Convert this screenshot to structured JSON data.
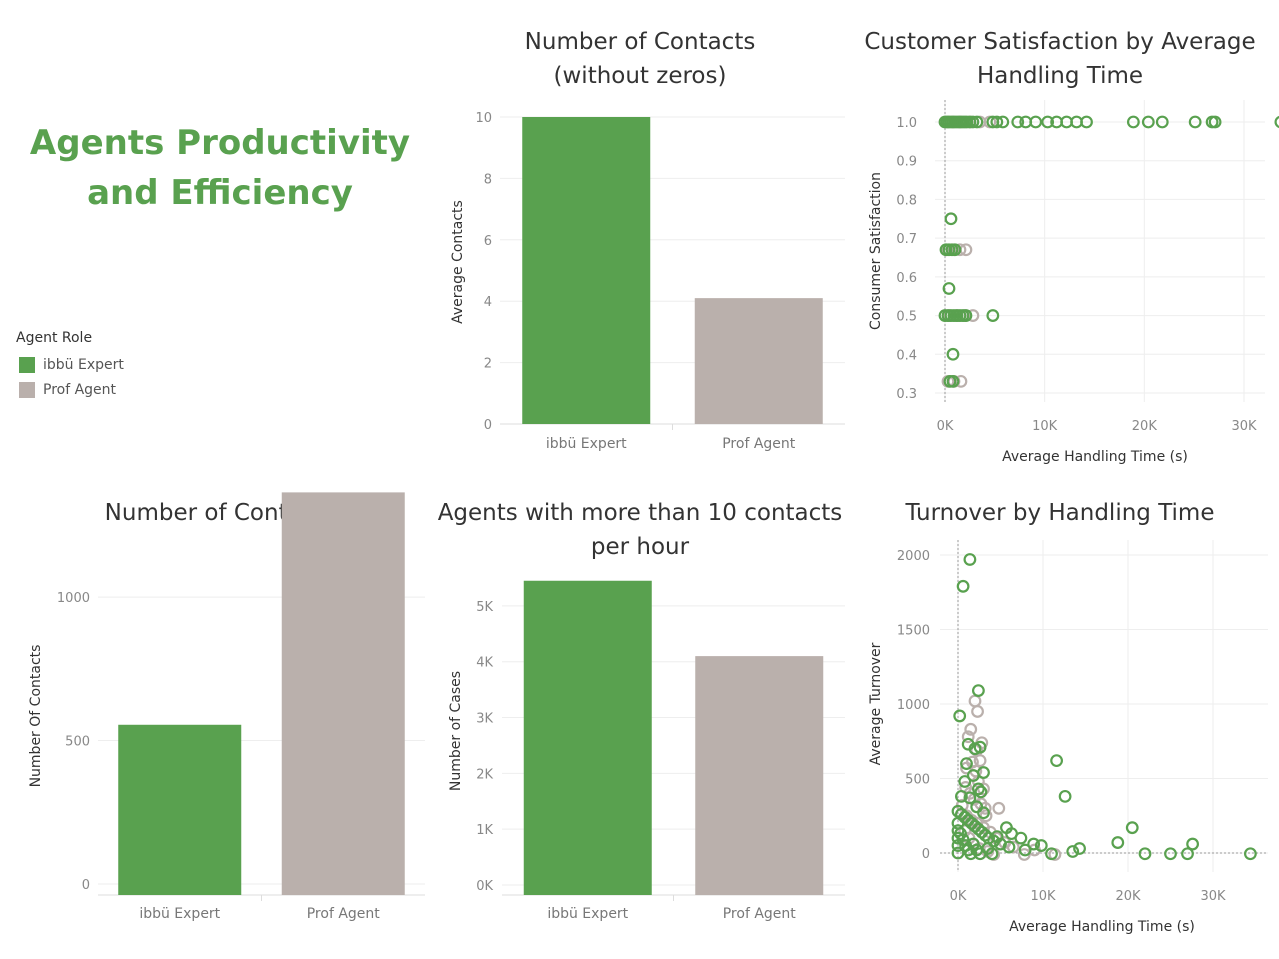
{
  "dashboard": {
    "title_line1": "Agents Productivity",
    "title_line2": "and Efficiency"
  },
  "legend": {
    "title": "Agent Role",
    "items": [
      {
        "label": "ibbü Expert",
        "color": "#59a14f"
      },
      {
        "label": "Prof Agent",
        "color": "#bab0ac"
      }
    ]
  },
  "chart_data": [
    {
      "id": "contacts_without_zeros",
      "type": "bar",
      "title": "Number of Contacts\n(without zeros)",
      "xlabel": "",
      "ylabel": "Average Contacts",
      "categories": [
        "ibbü Expert",
        "Prof Agent"
      ],
      "values": [
        10.0,
        4.1
      ],
      "colors": [
        "#59a14f",
        "#bab0ac"
      ],
      "ylim": [
        0,
        10
      ],
      "yticks": [
        0,
        2,
        4,
        6,
        8,
        10
      ],
      "ytick_labels": [
        "0",
        "2",
        "4",
        "6",
        "8",
        "10"
      ]
    },
    {
      "id": "csat_by_aht",
      "type": "scatter",
      "title": "Customer Satisfaction by Average\nHandling Time",
      "xlabel": "Average Handling Time (s)",
      "ylabel": "Consumer Satisfaction",
      "xlim": [
        0,
        34000
      ],
      "ylim": [
        0.3,
        1.0
      ],
      "xticks": [
        0,
        10000,
        20000,
        30000
      ],
      "xtick_labels": [
        "0K",
        "10K",
        "20K",
        "30K"
      ],
      "yticks": [
        0.3,
        0.4,
        0.5,
        0.6,
        0.7,
        0.8,
        0.9,
        1.0
      ],
      "ytick_labels": [
        "0.3",
        "0.4",
        "0.5",
        "0.6",
        "0.7",
        "0.8",
        "0.9",
        "1.0"
      ],
      "series": [
        {
          "name": "Prof Agent",
          "color": "#bab0ac",
          "points": [
            [
              300,
              1.0
            ],
            [
              800,
              1.0
            ],
            [
              1500,
              1.0
            ],
            [
              2500,
              1.0
            ],
            [
              3500,
              1.0
            ],
            [
              4500,
              1.0
            ],
            [
              200,
              0.67
            ],
            [
              900,
              0.67
            ],
            [
              1500,
              0.67
            ],
            [
              2100,
              0.67
            ],
            [
              400,
              0.5
            ],
            [
              1200,
              0.5
            ],
            [
              2000,
              0.5
            ],
            [
              2800,
              0.5
            ],
            [
              300,
              0.33
            ],
            [
              900,
              0.33
            ],
            [
              1600,
              0.33
            ]
          ]
        },
        {
          "name": "ibbü Expert",
          "color": "#59a14f",
          "points": [
            [
              0,
              1.0
            ],
            [
              200,
              1.0
            ],
            [
              400,
              1.0
            ],
            [
              600,
              1.0
            ],
            [
              800,
              1.0
            ],
            [
              1000,
              1.0
            ],
            [
              1200,
              1.0
            ],
            [
              1400,
              1.0
            ],
            [
              1600,
              1.0
            ],
            [
              1800,
              1.0
            ],
            [
              2000,
              1.0
            ],
            [
              2200,
              1.0
            ],
            [
              2500,
              1.0
            ],
            [
              2800,
              1.0
            ],
            [
              3200,
              1.0
            ],
            [
              4800,
              1.0
            ],
            [
              5200,
              1.0
            ],
            [
              5800,
              1.0
            ],
            [
              7300,
              1.0
            ],
            [
              8100,
              1.0
            ],
            [
              9100,
              1.0
            ],
            [
              10300,
              1.0
            ],
            [
              11200,
              1.0
            ],
            [
              12200,
              1.0
            ],
            [
              13200,
              1.0
            ],
            [
              14200,
              1.0
            ],
            [
              18900,
              1.0
            ],
            [
              20400,
              1.0
            ],
            [
              21800,
              1.0
            ],
            [
              25100,
              1.0
            ],
            [
              26800,
              1.0
            ],
            [
              27100,
              1.0
            ],
            [
              33700,
              1.0
            ],
            [
              600,
              0.75
            ],
            [
              100,
              0.67
            ],
            [
              400,
              0.67
            ],
            [
              700,
              0.67
            ],
            [
              1000,
              0.67
            ],
            [
              400,
              0.57
            ],
            [
              0,
              0.5
            ],
            [
              300,
              0.5
            ],
            [
              600,
              0.5
            ],
            [
              900,
              0.5
            ],
            [
              1200,
              0.5
            ],
            [
              1500,
              0.5
            ],
            [
              1800,
              0.5
            ],
            [
              2100,
              0.5
            ],
            [
              4800,
              0.5
            ],
            [
              800,
              0.4
            ],
            [
              500,
              0.33
            ],
            [
              800,
              0.33
            ]
          ]
        }
      ]
    },
    {
      "id": "number_of_contacts",
      "type": "bar",
      "title": "Number of Contacts",
      "xlabel": "",
      "ylabel": "Number Of Contacts",
      "categories": [
        "ibbü Expert",
        "Prof Agent"
      ],
      "values": [
        555,
        1365
      ],
      "colors": [
        "#59a14f",
        "#bab0ac"
      ],
      "ylim": [
        0,
        1450
      ],
      "yticks": [
        0,
        500,
        1000
      ],
      "ytick_labels": [
        "0",
        "500",
        "1000"
      ]
    },
    {
      "id": "agents_more_than_10",
      "type": "bar",
      "title": "Agents with more than 10 contacts\nper hour",
      "xlabel": "",
      "ylabel": "Number of Cases",
      "categories": [
        "ibbü Expert",
        "Prof Agent"
      ],
      "values": [
        5450,
        4100
      ],
      "colors": [
        "#59a14f",
        "#bab0ac"
      ],
      "ylim": [
        0,
        5750
      ],
      "yticks": [
        0,
        1000,
        2000,
        3000,
        4000,
        5000
      ],
      "ytick_labels": [
        "0K",
        "1K",
        "2K",
        "3K",
        "4K",
        "5K"
      ]
    },
    {
      "id": "turnover_by_aht",
      "type": "scatter",
      "title": "Turnover by Handling Time",
      "xlabel": "Average Handling Time (s)",
      "ylabel": "Average Turnover",
      "xlim": [
        -2000,
        36000
      ],
      "ylim": [
        -150,
        2100
      ],
      "xticks": [
        0,
        10000,
        20000,
        30000
      ],
      "xtick_labels": [
        "0K",
        "10K",
        "20K",
        "30K"
      ],
      "yticks": [
        0,
        500,
        1000,
        1500,
        2000
      ],
      "ytick_labels": [
        "0",
        "500",
        "1000",
        "1500",
        "2000"
      ],
      "series": [
        {
          "name": "Prof Agent",
          "color": "#bab0ac",
          "points": [
            [
              2000,
              1020
            ],
            [
              2300,
              950
            ],
            [
              1500,
              830
            ],
            [
              1200,
              780
            ],
            [
              2800,
              740
            ],
            [
              2200,
              690
            ],
            [
              2600,
              620
            ],
            [
              1000,
              570
            ],
            [
              1800,
              520
            ],
            [
              2400,
              480
            ],
            [
              3000,
              430
            ],
            [
              1400,
              400
            ],
            [
              1900,
              360
            ],
            [
              2700,
              330
            ],
            [
              3200,
              300
            ],
            [
              4800,
              300
            ],
            [
              1000,
              250
            ],
            [
              1600,
              220
            ],
            [
              2200,
              200
            ],
            [
              3000,
              170
            ],
            [
              3800,
              140
            ],
            [
              4500,
              100
            ],
            [
              5500,
              70
            ],
            [
              6500,
              40
            ],
            [
              800,
              150
            ],
            [
              1300,
              100
            ],
            [
              1800,
              60
            ],
            [
              2500,
              30
            ],
            [
              3500,
              10
            ],
            [
              4200,
              -10
            ],
            [
              7800,
              -10
            ],
            [
              9000,
              20
            ],
            [
              11400,
              -10
            ],
            [
              500,
              320
            ],
            [
              900,
              440
            ],
            [
              1700,
              610
            ],
            [
              2100,
              550
            ],
            [
              3300,
              250
            ]
          ]
        },
        {
          "name": "ibbü Expert",
          "color": "#59a14f",
          "points": [
            [
              1400,
              1970
            ],
            [
              600,
              1790
            ],
            [
              2400,
              1090
            ],
            [
              200,
              920
            ],
            [
              1200,
              730
            ],
            [
              2000,
              700
            ],
            [
              2600,
              710
            ],
            [
              1000,
              600
            ],
            [
              1800,
              520
            ],
            [
              3000,
              540
            ],
            [
              800,
              480
            ],
            [
              2400,
              430
            ],
            [
              400,
              380
            ],
            [
              1400,
              370
            ],
            [
              2200,
              310
            ],
            [
              2700,
              410
            ],
            [
              3000,
              270
            ],
            [
              0,
              280
            ],
            [
              400,
              260
            ],
            [
              800,
              240
            ],
            [
              1200,
              220
            ],
            [
              1600,
              200
            ],
            [
              2000,
              180
            ],
            [
              2400,
              160
            ],
            [
              2800,
              140
            ],
            [
              3200,
              120
            ],
            [
              3600,
              100
            ],
            [
              4200,
              80
            ],
            [
              5000,
              60
            ],
            [
              6000,
              40
            ],
            [
              0,
              200
            ],
            [
              0,
              150
            ],
            [
              0,
              100
            ],
            [
              0,
              50
            ],
            [
              0,
              0
            ],
            [
              300,
              130
            ],
            [
              600,
              90
            ],
            [
              900,
              50
            ],
            [
              1200,
              20
            ],
            [
              1500,
              -5
            ],
            [
              1800,
              60
            ],
            [
              2200,
              20
            ],
            [
              2600,
              -5
            ],
            [
              3500,
              30
            ],
            [
              4000,
              -5
            ],
            [
              4600,
              110
            ],
            [
              5700,
              170
            ],
            [
              6300,
              130
            ],
            [
              7400,
              100
            ],
            [
              7900,
              20
            ],
            [
              8900,
              60
            ],
            [
              11000,
              -5
            ],
            [
              9800,
              50
            ],
            [
              11600,
              620
            ],
            [
              12600,
              380
            ],
            [
              13500,
              10
            ],
            [
              14300,
              30
            ],
            [
              18800,
              70
            ],
            [
              20500,
              170
            ],
            [
              22000,
              -5
            ],
            [
              25000,
              -5
            ],
            [
              27000,
              -5
            ],
            [
              27600,
              60
            ],
            [
              34400,
              -5
            ]
          ]
        }
      ]
    }
  ]
}
